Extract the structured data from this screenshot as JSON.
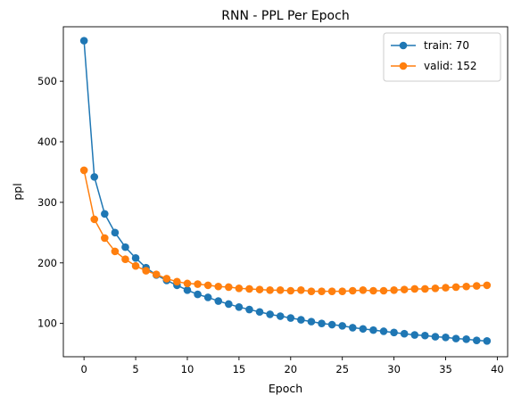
{
  "chart_data": {
    "type": "line",
    "title": "RNN - PPL Per Epoch",
    "xlabel": "Epoch",
    "ylabel": "ppl",
    "xlim": [
      -2,
      41
    ],
    "ylim": [
      45,
      590
    ],
    "xticks": [
      0,
      5,
      10,
      15,
      20,
      25,
      30,
      35,
      40
    ],
    "yticks": [
      100,
      200,
      300,
      400,
      500
    ],
    "legend_position": "top-right",
    "grid": false,
    "x": [
      0,
      1,
      2,
      3,
      4,
      5,
      6,
      7,
      8,
      9,
      10,
      11,
      12,
      13,
      14,
      15,
      16,
      17,
      18,
      19,
      20,
      21,
      22,
      23,
      24,
      25,
      26,
      27,
      28,
      29,
      30,
      31,
      32,
      33,
      34,
      35,
      36,
      37,
      38,
      39
    ],
    "series": [
      {
        "name": "train: 70",
        "color": "#1f77b4",
        "values": [
          567,
          342,
          281,
          250,
          226,
          208,
          192,
          180,
          171,
          163,
          155,
          148,
          143,
          137,
          132,
          127,
          123,
          119,
          115,
          112,
          109,
          106,
          103,
          100,
          98,
          96,
          93,
          91,
          89,
          87,
          85,
          83,
          81,
          80,
          78,
          77,
          75,
          74,
          72,
          71
        ]
      },
      {
        "name": "valid: 152",
        "color": "#ff7f0e",
        "values": [
          353,
          272,
          241,
          219,
          206,
          195,
          187,
          181,
          174,
          169,
          166,
          165,
          163,
          161,
          160,
          158,
          157,
          156,
          155,
          155,
          154,
          155,
          153,
          153,
          153,
          153,
          154,
          155,
          154,
          154,
          155,
          156,
          157,
          157,
          158,
          159,
          160,
          161,
          162,
          163
        ]
      }
    ]
  }
}
